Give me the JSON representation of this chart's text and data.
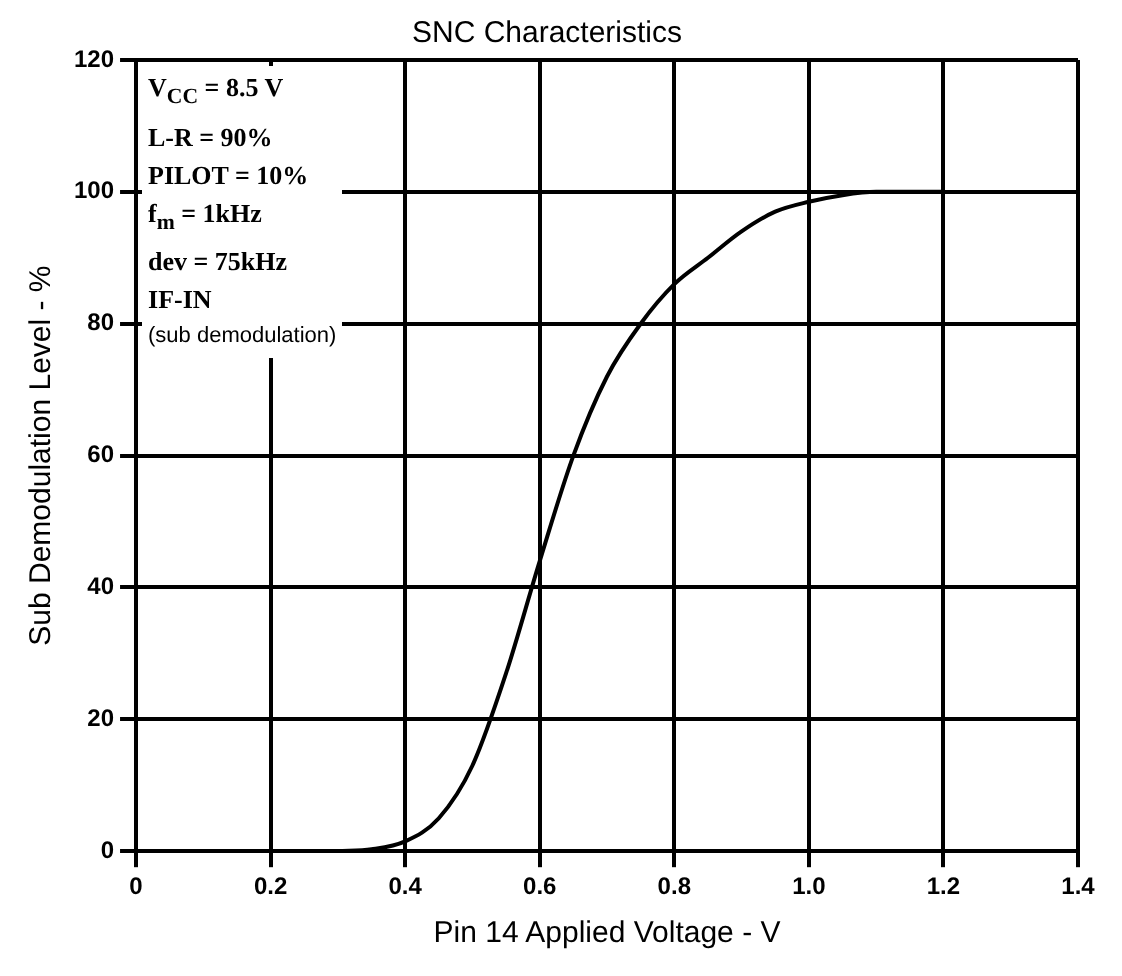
{
  "chart_data": {
    "type": "line",
    "title": "SNC Characteristics",
    "xlabel": "Pin 14 Applied Voltage - V",
    "ylabel": "Sub Demodulation Level - %",
    "x": [
      0.3,
      0.35,
      0.4,
      0.45,
      0.5,
      0.55,
      0.6,
      0.65,
      0.7,
      0.75,
      0.8,
      0.85,
      0.9,
      0.95,
      1.0,
      1.05,
      1.1,
      1.2
    ],
    "series": [
      {
        "color": "#000000",
        "values": [
          0,
          0.3,
          1.5,
          5,
          13,
          27,
          44,
          60,
          72,
          80,
          86,
          90,
          94,
          97,
          98.5,
          99.5,
          100,
          100
        ]
      }
    ],
    "xlim": [
      0,
      1.4
    ],
    "xticks": [
      0,
      0.2,
      0.4,
      0.6,
      0.8,
      {
        "value": 1,
        "label": "1.0"
      },
      1.2,
      1.4
    ],
    "ylim": [
      0,
      120
    ],
    "yticks": [
      0,
      20,
      40,
      60,
      80,
      100,
      120
    ],
    "grid": true,
    "legend": false,
    "marker": "none",
    "line_style": "solid",
    "annotations": [
      "V$_{CC}$ = 8.5 V",
      "L-R = 90%",
      "PILOT = 10%",
      "f$_{m}$ = 1kHz",
      "dev = 75kHz",
      "IF-IN",
      "(sub demodulation)"
    ]
  }
}
